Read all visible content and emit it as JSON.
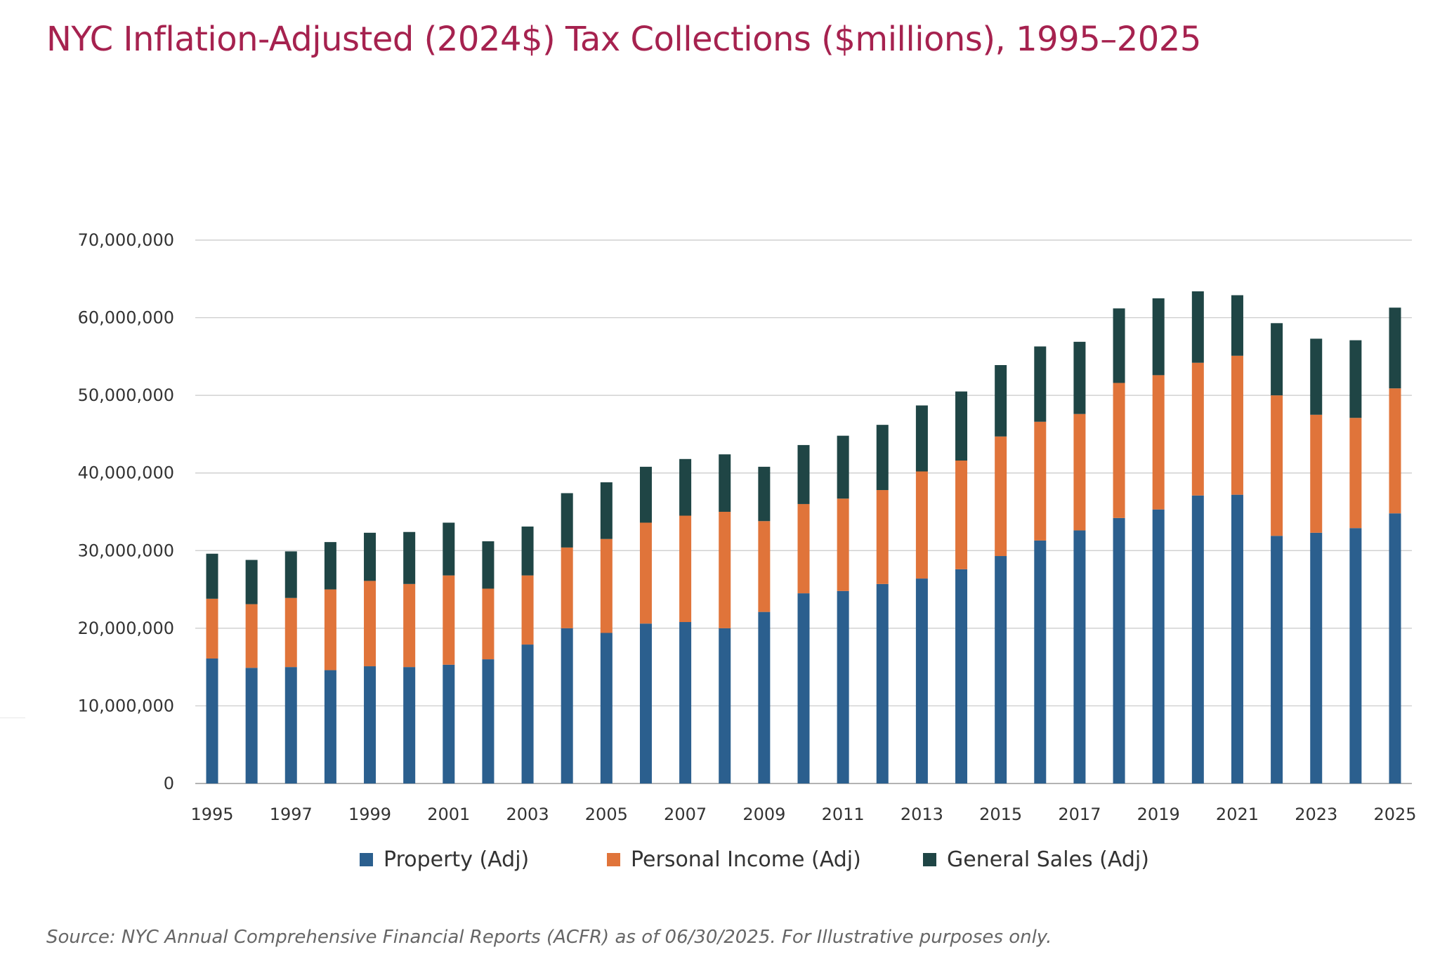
{
  "chart_data": {
    "type": "bar",
    "stacked": true,
    "title": "NYC Inflation-Adjusted (2024$) Tax Collections ($millions), 1995–2025",
    "source": "Source: NYC Annual Comprehensive Financial Reports (ACFR) as of 06/30/2025. For Illustrative purposes only.",
    "categories": [
      "1995",
      "1996",
      "1997",
      "1998",
      "1999",
      "2000",
      "2001",
      "2002",
      "2003",
      "2004",
      "2005",
      "2006",
      "2007",
      "2008",
      "2009",
      "2010",
      "2011",
      "2012",
      "2013",
      "2014",
      "2015",
      "2016",
      "2017",
      "2018",
      "2019",
      "2020",
      "2021",
      "2022",
      "2023",
      "2024",
      "2025"
    ],
    "x_tick_labels": [
      "1995",
      "1997",
      "1999",
      "2001",
      "2003",
      "2005",
      "2007",
      "2009",
      "2011",
      "2013",
      "2015",
      "2017",
      "2019",
      "2021",
      "2023",
      "2025"
    ],
    "y_tick_labels": [
      "0",
      "10,000,000",
      "20,000,000",
      "30,000,000",
      "40,000,000",
      "50,000,000",
      "60,000,000",
      "70,000,000"
    ],
    "ylim": [
      0,
      70000000
    ],
    "grid": true,
    "legend_position": "bottom",
    "series": [
      {
        "name": "Property (Adj)",
        "color": "#2b5f8e",
        "values": [
          16100000,
          14900000,
          15000000,
          14600000,
          15100000,
          15000000,
          15300000,
          16000000,
          17900000,
          20000000,
          19400000,
          20600000,
          20800000,
          20000000,
          22100000,
          24500000,
          24800000,
          25700000,
          26400000,
          27600000,
          29300000,
          31300000,
          32600000,
          34200000,
          35300000,
          37100000,
          37200000,
          31900000,
          32300000,
          32900000,
          34800000
        ]
      },
      {
        "name": "Personal Income (Adj)",
        "color": "#e0743a",
        "values": [
          7700000,
          8200000,
          8900000,
          10400000,
          11000000,
          10700000,
          11500000,
          9100000,
          8900000,
          10400000,
          12100000,
          13000000,
          13700000,
          15000000,
          11700000,
          11500000,
          11900000,
          12100000,
          13800000,
          14000000,
          15400000,
          15300000,
          15000000,
          17400000,
          17300000,
          17100000,
          17900000,
          18100000,
          15200000,
          14200000,
          16100000
        ]
      },
      {
        "name": "General Sales (Adj)",
        "color": "#1f4545",
        "values": [
          5800000,
          5700000,
          6000000,
          6100000,
          6200000,
          6700000,
          6800000,
          6100000,
          6300000,
          7000000,
          7300000,
          7200000,
          7300000,
          7400000,
          7000000,
          7600000,
          8100000,
          8400000,
          8500000,
          8900000,
          9200000,
          9700000,
          9300000,
          9600000,
          9900000,
          9200000,
          7800000,
          9300000,
          9800000,
          10000000,
          10400000
        ]
      }
    ]
  }
}
